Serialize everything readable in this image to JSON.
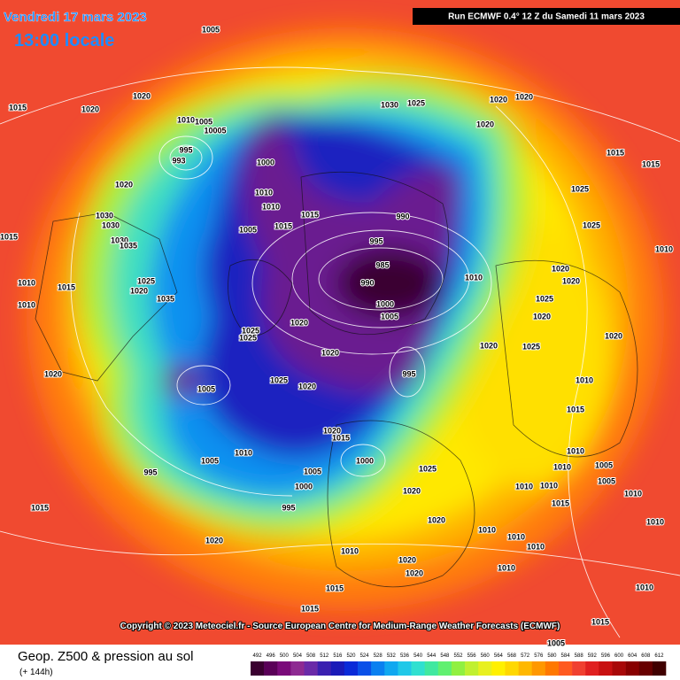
{
  "header": {
    "title": "Vendredi 17 mars 2023",
    "time": "13:00 locale",
    "run": "Run ECMWF 0.4° 12 Z du Samedi 11 mars 2023"
  },
  "copyright": "Copyright © 2023 Meteociel.fr - Source European Centre for Medium-Range Weather Forecasts (ECMWF)",
  "footer": {
    "title": "Geop. Z500 & pression au sol",
    "lead": "(+ 144h)"
  },
  "scale": {
    "ticks": [
      492,
      496,
      500,
      504,
      508,
      512,
      516,
      520,
      524,
      528,
      532,
      536,
      540,
      544,
      548,
      552,
      556,
      560,
      564,
      568,
      572,
      576,
      580,
      584,
      588,
      592,
      596,
      600,
      604,
      608,
      612
    ],
    "colors": [
      "#3a0030",
      "#5a0058",
      "#7a0a7a",
      "#8e2a92",
      "#6a2aa8",
      "#3a20b0",
      "#1a1ab8",
      "#0a2ad8",
      "#0a50e8",
      "#0a80f0",
      "#10a8f0",
      "#20c8e8",
      "#30e0d0",
      "#40e8a0",
      "#60f070",
      "#90f040",
      "#c0f030",
      "#e8f020",
      "#fff000",
      "#ffd800",
      "#ffb800",
      "#ff9800",
      "#ff7800",
      "#ff5a20",
      "#f04030",
      "#e02020",
      "#c81010",
      "#a80808",
      "#880000",
      "#680000",
      "#400000"
    ]
  },
  "pressure_labels": [
    1005,
    1015,
    1020,
    1020,
    1010,
    1005,
    10005,
    995,
    993,
    1000,
    1010,
    1010,
    1015,
    1015,
    1005,
    1030,
    1025,
    1020,
    1020,
    1020,
    990,
    995,
    985,
    990,
    1000,
    1005,
    1010,
    1025,
    1015,
    1015,
    1025,
    1010,
    1020,
    1020,
    1025,
    1020,
    1025,
    1020,
    1020,
    1020,
    1030,
    1030,
    1030,
    1035,
    1015,
    1010,
    1010,
    1015,
    1025,
    1020,
    1035,
    1025,
    1025,
    1020,
    1020,
    1025,
    1020,
    1005,
    995,
    1020,
    1020,
    1015,
    1010,
    1005,
    995,
    1005,
    1000,
    1000,
    995,
    1025,
    1020,
    1020,
    1015,
    1020,
    1010,
    1010,
    1010,
    1010,
    1020,
    1020,
    1010,
    1015,
    1015,
    1010,
    1005,
    1010,
    1010,
    1010,
    1005,
    1010,
    1015,
    1010,
    1010,
    1015,
    1005,
    1015,
    1010
  ]
}
